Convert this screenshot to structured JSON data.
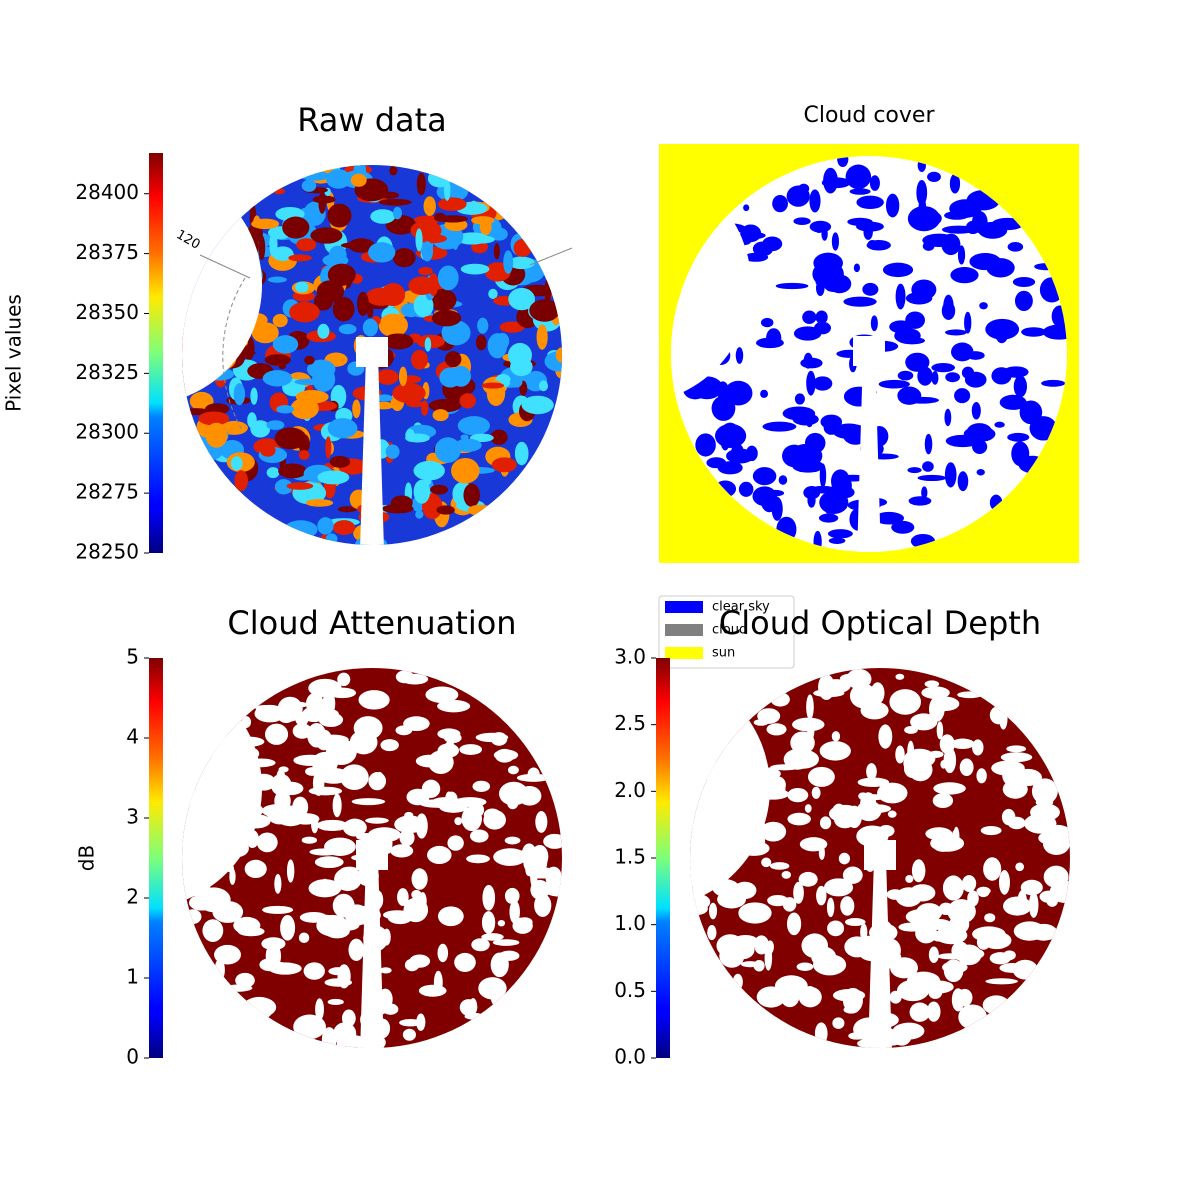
{
  "chart_data": [
    {
      "type": "heatmap",
      "title": "Raw data",
      "colormap": "jet",
      "colorbar_label": "Pixel values",
      "clim": [
        28250,
        28417
      ],
      "cticks": [
        28250,
        28275,
        28300,
        28325,
        28350,
        28375,
        28400
      ],
      "annotation": "120"
    },
    {
      "type": "classification",
      "title": "Cloud cover",
      "legend": [
        {
          "name": "clear sky",
          "color": "#0000ff"
        },
        {
          "name": "cloud",
          "color": "#808080"
        },
        {
          "name": "sun",
          "color": "#ffff00"
        }
      ]
    },
    {
      "type": "heatmap",
      "title": "Cloud Attenuation",
      "colormap": "jet",
      "colorbar_label": "dB",
      "clim": [
        0,
        5
      ],
      "cticks": [
        0,
        1,
        2,
        3,
        4,
        5
      ]
    },
    {
      "type": "heatmap",
      "title": "Cloud Optical Depth",
      "colormap": "jet",
      "clim": [
        0,
        3
      ],
      "cticks": [
        {
          "value": 0,
          "label": "0.0"
        },
        {
          "value": 0.5,
          "label": "0.5"
        },
        {
          "value": 1,
          "label": "1.0"
        },
        {
          "value": 1.5,
          "label": "1.5"
        },
        {
          "value": 2,
          "label": "2.0"
        },
        {
          "value": 2.5,
          "label": "2.5"
        },
        {
          "value": 3,
          "label": "3.0"
        }
      ]
    }
  ]
}
